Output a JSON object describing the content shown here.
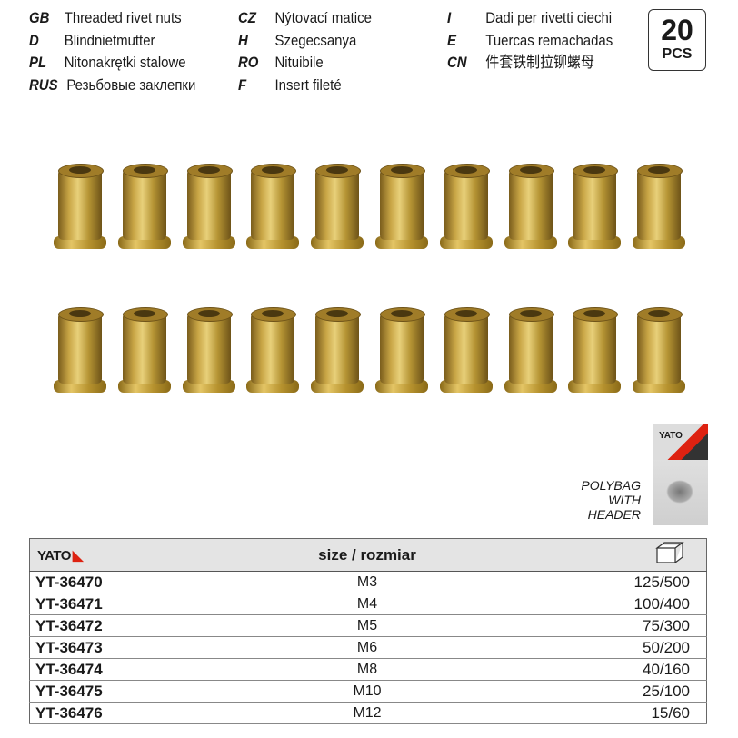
{
  "languages": [
    [
      {
        "code": "GB",
        "text": "Threaded rivet nuts"
      },
      {
        "code": "D",
        "text": "Blindnietmutter"
      },
      {
        "code": "PL",
        "text": "Nitonakrętki stalowe"
      },
      {
        "code": "RUS",
        "text": "Резьбовые заклепки"
      }
    ],
    [
      {
        "code": "CZ",
        "text": "Nýtovací matice"
      },
      {
        "code": "H",
        "text": "Szegecsanya"
      },
      {
        "code": "RO",
        "text": "Nituibile"
      },
      {
        "code": "F",
        "text": "Insert fileté"
      }
    ],
    [
      {
        "code": "I",
        "text": "Dadi per rivetti ciechi"
      },
      {
        "code": "E",
        "text": "Tuercas remachadas"
      },
      {
        "code": "CN",
        "text": "件套铁制拉铆螺母"
      }
    ]
  ],
  "pcs_badge": {
    "count": "20",
    "unit": "PCS"
  },
  "packaging": {
    "label_lines": [
      "POLYBAG",
      "WITH",
      "HEADER"
    ],
    "bag_brand": "YATO"
  },
  "table": {
    "brand": "YATO",
    "size_header": "size / rozmiar",
    "qty_header_icon": "box-icon",
    "rows": [
      {
        "code": "YT-36470",
        "size": "M3",
        "qty": "125/500"
      },
      {
        "code": "YT-36471",
        "size": "M4",
        "qty": "100/400"
      },
      {
        "code": "YT-36472",
        "size": "M5",
        "qty": "75/300"
      },
      {
        "code": "YT-36473",
        "size": "M6",
        "qty": "50/200"
      },
      {
        "code": "YT-36474",
        "size": "M8",
        "qty": "40/160"
      },
      {
        "code": "YT-36475",
        "size": "M10",
        "qty": "25/100"
      },
      {
        "code": "YT-36476",
        "size": "M12",
        "qty": "15/60"
      }
    ]
  },
  "colors": {
    "brand_red": "#dd2211",
    "rivet_gold": "#c9a646"
  }
}
